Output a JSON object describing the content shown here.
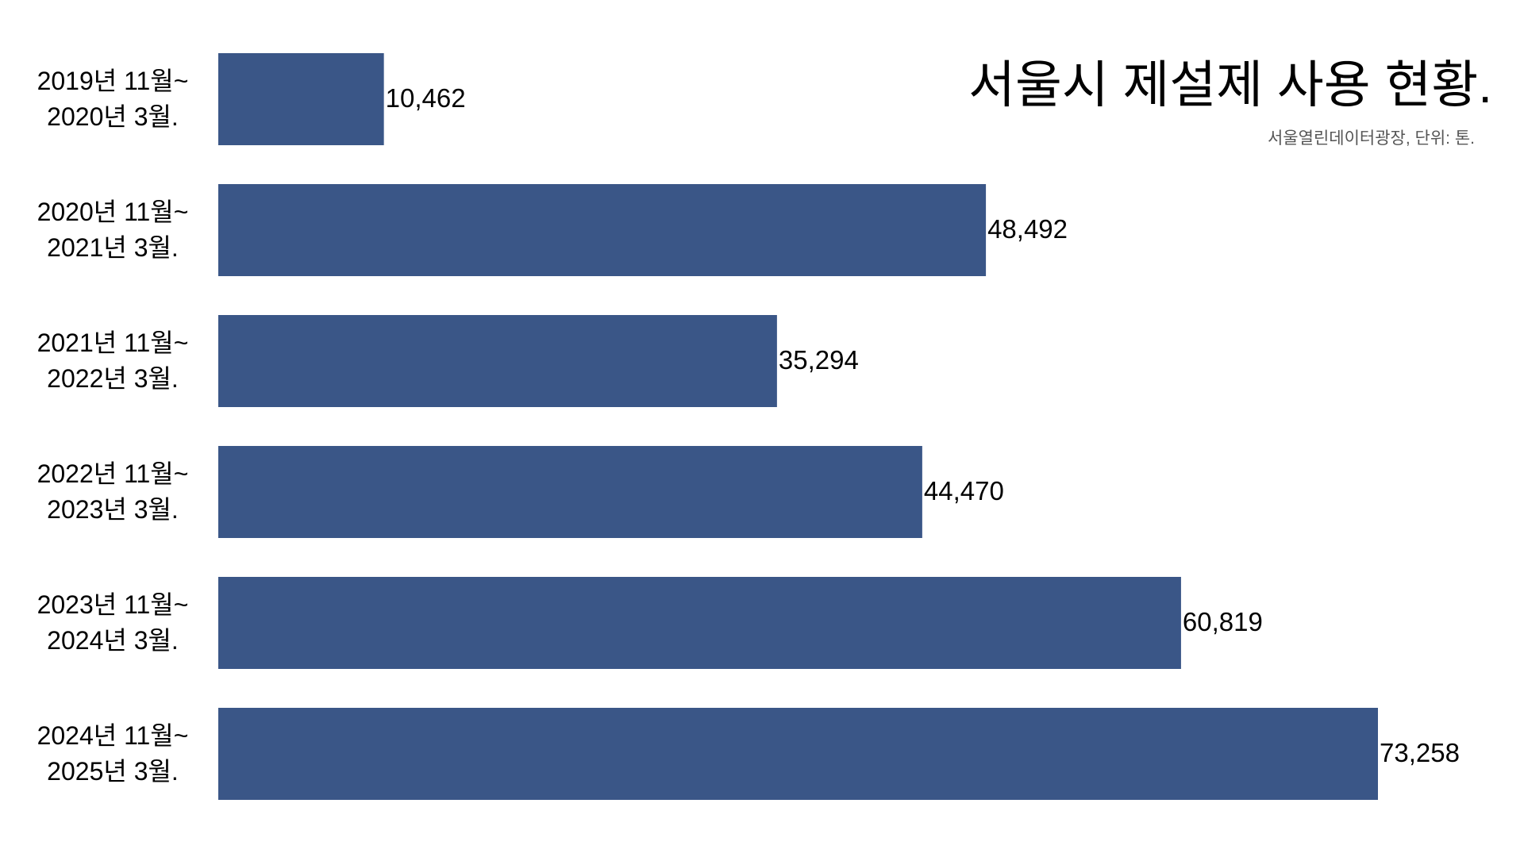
{
  "chart_data": {
    "type": "bar",
    "orientation": "horizontal",
    "title": "서울시 제설제 사용 현황.",
    "subtitle": "서울열린데이터광장, 단위: 톤.",
    "categories": [
      "2019년 11월~\n2020년 3월.",
      "2020년 11월~\n2021년 3월.",
      "2021년 11월~\n2022년 3월.",
      "2022년 11월~\n2023년 3월.",
      "2023년 11월~\n2024년 3월.",
      "2024년 11월~\n2025년 3월."
    ],
    "values": [
      10462,
      48492,
      35294,
      44470,
      60819,
      73258
    ],
    "value_labels": [
      "10,462",
      "48,492",
      "35,294",
      "44,470",
      "60,819",
      "73,258"
    ],
    "color": "#3a5687"
  }
}
